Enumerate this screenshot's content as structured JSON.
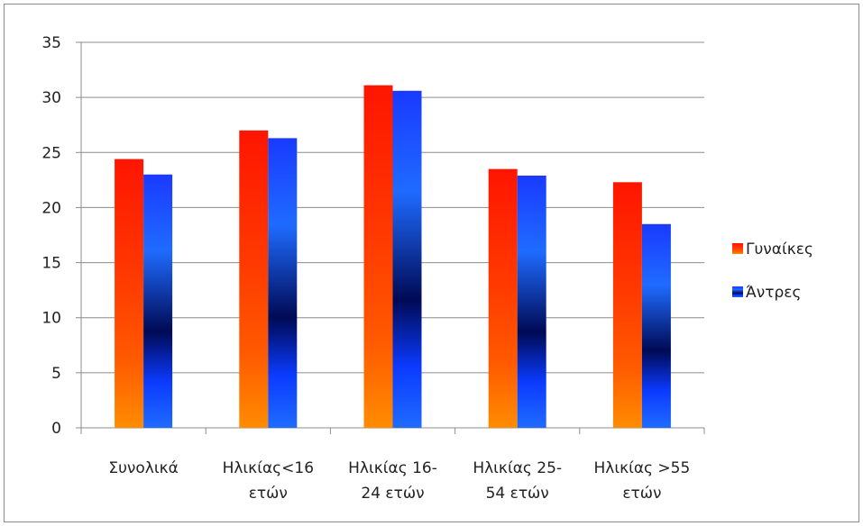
{
  "chart_data": {
    "type": "bar",
    "categories": [
      [
        "Συνολικά"
      ],
      [
        "Ηλικίας<16",
        "ετών"
      ],
      [
        "Ηλικίας 16-",
        "24 ετών"
      ],
      [
        "Ηλικίας 25-",
        "54 ετών"
      ],
      [
        "Ηλικίας >55",
        "ετών"
      ]
    ],
    "series": [
      {
        "name": "Γυναίκες",
        "values": [
          24.4,
          27.0,
          31.1,
          23.5,
          22.3
        ],
        "color": "#ff2a00"
      },
      {
        "name": "Άντρες",
        "values": [
          23.0,
          26.3,
          30.6,
          22.9,
          18.5
        ],
        "color": "#0033cc"
      }
    ],
    "title": "",
    "xlabel": "",
    "ylabel": "",
    "ylim": [
      0,
      35
    ],
    "yticks": [
      0,
      5,
      10,
      15,
      20,
      25,
      30,
      35
    ],
    "grid": true,
    "legend": "right"
  }
}
